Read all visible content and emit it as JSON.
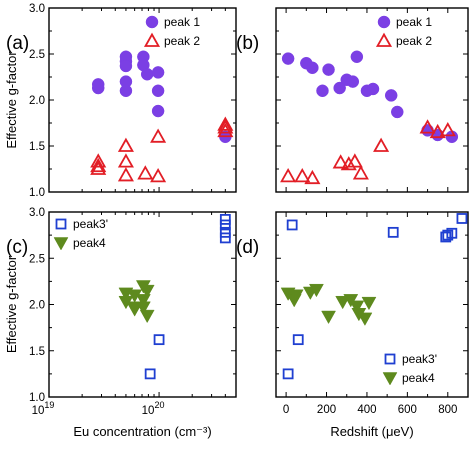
{
  "chart_data": [
    {
      "panel": "(a)",
      "type": "scatter",
      "xscale": "log",
      "xlim": [
        10000000000000000000,
        500000000000000000000
      ],
      "ylim": [
        1.0,
        3.0
      ],
      "ylabel": "Effective g-factor",
      "yticks": [
        "1.0",
        "1.5",
        "2.0",
        "2.5",
        "3.0"
      ],
      "legend_position": "top-right",
      "series": [
        {
          "name": "peak 1",
          "marker": "filled-circle",
          "color": "#7b3fe4",
          "points": [
            [
              28000000000000000000,
              2.13
            ],
            [
              28000000000000000000,
              2.17
            ],
            [
              50000000000000000000,
              2.42
            ],
            [
              50000000000000000000,
              2.47
            ],
            [
              50000000000000000000,
              2.37
            ],
            [
              50000000000000000000,
              2.2
            ],
            [
              50000000000000000000,
              2.1
            ],
            [
              72000000000000000000,
              2.47
            ],
            [
              72000000000000000000,
              2.38
            ],
            [
              78000000000000000000,
              2.28
            ],
            [
              98000000000000000000,
              2.3
            ],
            [
              98000000000000000000,
              2.1
            ],
            [
              98000000000000000000,
              1.88
            ],
            [
              400000000000000000000,
              1.6
            ]
          ]
        },
        {
          "name": "peak 2",
          "marker": "open-triangle",
          "color": "#e21e26",
          "points": [
            [
              28000000000000000000,
              1.25
            ],
            [
              28000000000000000000,
              1.28
            ],
            [
              28000000000000000000,
              1.33
            ],
            [
              50000000000000000000,
              1.5
            ],
            [
              50000000000000000000,
              1.33
            ],
            [
              50000000000000000000,
              1.18
            ],
            [
              75000000000000000000,
              1.2
            ],
            [
              98000000000000000000,
              1.6
            ],
            [
              98000000000000000000,
              1.17
            ],
            [
              400000000000000000000,
              1.66
            ],
            [
              400000000000000000000,
              1.7
            ],
            [
              400000000000000000000,
              1.73
            ]
          ]
        }
      ]
    },
    {
      "panel": "(b)",
      "type": "scatter",
      "xlim": [
        -50,
        900
      ],
      "ylim": [
        1.0,
        3.0
      ],
      "legend_position": "top-right",
      "series": [
        {
          "name": "peak 1",
          "marker": "filled-circle",
          "color": "#7b3fe4",
          "points": [
            [
              10,
              2.45
            ],
            [
              100,
              2.4
            ],
            [
              130,
              2.35
            ],
            [
              180,
              2.1
            ],
            [
              210,
              2.33
            ],
            [
              265,
              2.13
            ],
            [
              300,
              2.22
            ],
            [
              330,
              2.2
            ],
            [
              350,
              2.47
            ],
            [
              400,
              2.1
            ],
            [
              430,
              2.12
            ],
            [
              520,
              2.05
            ],
            [
              550,
              1.87
            ],
            [
              700,
              1.67
            ],
            [
              750,
              1.62
            ],
            [
              820,
              1.6
            ]
          ]
        },
        {
          "name": "peak 2",
          "marker": "open-triangle",
          "color": "#e21e26",
          "points": [
            [
              10,
              1.17
            ],
            [
              80,
              1.17
            ],
            [
              130,
              1.15
            ],
            [
              270,
              1.32
            ],
            [
              310,
              1.3
            ],
            [
              340,
              1.33
            ],
            [
              370,
              1.2
            ],
            [
              470,
              1.5
            ],
            [
              700,
              1.7
            ],
            [
              750,
              1.65
            ],
            [
              800,
              1.67
            ]
          ]
        }
      ]
    },
    {
      "panel": "(c)",
      "type": "scatter",
      "xscale": "log",
      "xlim": [
        10000000000000000000,
        500000000000000000000
      ],
      "ylim": [
        1.0,
        3.0
      ],
      "xlabel": "Eu concentration (cm⁻³)",
      "ylabel": "Effective g-factor",
      "xticks": [
        "10",
        "10"
      ],
      "xtick_exponents": [
        "19",
        "20"
      ],
      "yticks": [
        "1.0",
        "1.5",
        "2.0",
        "2.5",
        "3.0"
      ],
      "legend_position": "top-left",
      "series": [
        {
          "name": "peak3'",
          "marker": "open-square",
          "color": "#1f3fd1",
          "points": [
            [
              83000000000000000000,
              1.25
            ],
            [
              100000000000000000000,
              1.62
            ],
            [
              400000000000000000000,
              2.72
            ],
            [
              400000000000000000000,
              2.78
            ],
            [
              400000000000000000000,
              2.86
            ],
            [
              400000000000000000000,
              2.92
            ]
          ]
        },
        {
          "name": "peak4",
          "marker": "filled-down-triangle",
          "color": "#5e8a1e",
          "points": [
            [
              50000000000000000000,
              2.12
            ],
            [
              50000000000000000000,
              2.03
            ],
            [
              60000000000000000000,
              2.1
            ],
            [
              60000000000000000000,
              1.95
            ],
            [
              60000000000000000000,
              1.97
            ],
            [
              72000000000000000000,
              2.2
            ],
            [
              72000000000000000000,
              2.05
            ],
            [
              72000000000000000000,
              1.97
            ],
            [
              78000000000000000000,
              2.15
            ],
            [
              78000000000000000000,
              1.88
            ]
          ]
        }
      ]
    },
    {
      "panel": "(d)",
      "type": "scatter",
      "xlim": [
        -50,
        900
      ],
      "ylim": [
        1.0,
        3.0
      ],
      "xlabel": "Redshift (μeV)",
      "xticks": [
        "0",
        "200",
        "400",
        "600",
        "800"
      ],
      "legend_position": "bottom-right",
      "series": [
        {
          "name": "peak3'",
          "marker": "open-square",
          "color": "#1f3fd1",
          "points": [
            [
              10,
              1.25
            ],
            [
              30,
              2.86
            ],
            [
              60,
              1.62
            ],
            [
              530,
              2.78
            ],
            [
              790,
              2.73
            ],
            [
              800,
              2.75
            ],
            [
              820,
              2.77
            ],
            [
              870,
              2.93
            ]
          ]
        },
        {
          "name": "peak4",
          "marker": "filled-down-triangle",
          "color": "#5e8a1e",
          "points": [
            [
              10,
              2.12
            ],
            [
              40,
              2.05
            ],
            [
              50,
              2.1
            ],
            [
              120,
              2.13
            ],
            [
              150,
              2.16
            ],
            [
              210,
              1.87
            ],
            [
              280,
              2.03
            ],
            [
              320,
              2.05
            ],
            [
              350,
              1.98
            ],
            [
              360,
              1.9
            ],
            [
              390,
              1.85
            ],
            [
              410,
              2.02
            ]
          ]
        }
      ]
    }
  ]
}
